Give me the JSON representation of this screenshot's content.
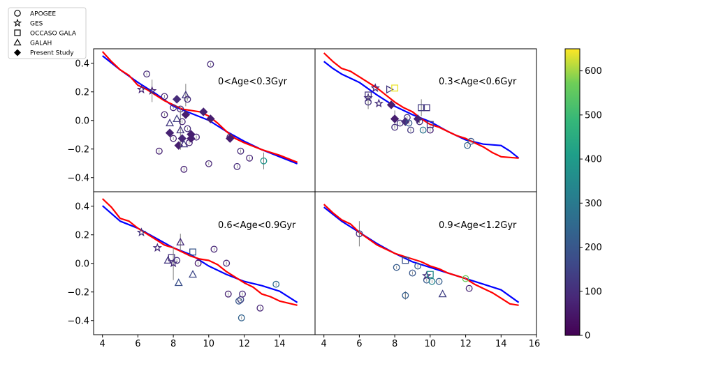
{
  "legend": {
    "entries": [
      {
        "label": "APOGEE",
        "marker": "circle"
      },
      {
        "label": "GES",
        "marker": "star"
      },
      {
        "label": "OCCASO GALA",
        "marker": "square"
      },
      {
        "label": "GALAH",
        "marker": "triangle"
      },
      {
        "label": "Present Study",
        "marker": "diamond"
      }
    ]
  },
  "colorbar": {
    "range": [
      0,
      650
    ],
    "ticks": [
      0,
      100,
      200,
      300,
      400,
      500,
      600
    ]
  },
  "chart_data": {
    "type": "scatter",
    "x_range": [
      3.5,
      16
    ],
    "y_range": [
      -0.52,
      0.5
    ],
    "x_ticks": [
      "4",
      "6",
      "8",
      "10",
      "12",
      "14"
    ],
    "x_ticks_right": [
      "4",
      "6",
      "8",
      "10",
      "12",
      "14",
      "16"
    ],
    "y_ticks": [
      "0.4",
      "0.2",
      "0.0",
      "−0.2",
      "−0.4"
    ],
    "y_tick_values": [
      0.4,
      0.2,
      0.0,
      -0.2,
      -0.4
    ],
    "panels": [
      {
        "title": "0<Age<0.3Gyr",
        "blue_line": {
          "x": [
            4,
            5,
            6,
            7,
            8,
            9,
            10,
            11,
            12,
            13,
            14,
            15
          ],
          "y": [
            0.45,
            0.35,
            0.26,
            0.18,
            0.09,
            0.04,
            -0.01,
            -0.09,
            -0.16,
            -0.22,
            -0.27,
            -0.32
          ]
        },
        "red_line": {
          "x": [
            4,
            4.5,
            5,
            5.5,
            6,
            6.5,
            7,
            7.5,
            8,
            8.5,
            9,
            9.5,
            10,
            10.5,
            11,
            11.5,
            12,
            13,
            14,
            15
          ],
          "y": [
            0.48,
            0.41,
            0.35,
            0.31,
            0.24,
            0.21,
            0.17,
            0.13,
            0.1,
            0.07,
            0.06,
            0.05,
            0.02,
            -0.03,
            -0.09,
            -0.14,
            -0.17,
            -0.22,
            -0.26,
            -0.31
          ]
        },
        "points": [
          {
            "x": 6.2,
            "y": 0.21,
            "m": "star",
            "c": 80
          },
          {
            "x": 6.5,
            "y": 0.32,
            "m": "circle",
            "c": 90
          },
          {
            "x": 6.8,
            "y": 0.2,
            "m": "star",
            "c": 70,
            "err": 0.08
          },
          {
            "x": 7.2,
            "y": -0.23,
            "m": "circle",
            "c": 70
          },
          {
            "x": 7.5,
            "y": 0.16,
            "m": "circle",
            "c": 80
          },
          {
            "x": 7.5,
            "y": 0.03,
            "m": "circle",
            "c": 80
          },
          {
            "x": 7.8,
            "y": -0.03,
            "m": "triangle",
            "c": 120
          },
          {
            "x": 7.8,
            "y": -0.1,
            "m": "diamond",
            "c": 70
          },
          {
            "x": 8.0,
            "y": 0.08,
            "m": "circle",
            "c": 90
          },
          {
            "x": 8.0,
            "y": -0.14,
            "m": "circle",
            "c": 70
          },
          {
            "x": 8.2,
            "y": 0.14,
            "m": "diamond",
            "c": 90
          },
          {
            "x": 8.2,
            "y": 0.0,
            "m": "triangle",
            "c": 140
          },
          {
            "x": 8.3,
            "y": -0.19,
            "m": "diamond",
            "c": 60
          },
          {
            "x": 8.4,
            "y": 0.07,
            "m": "circle",
            "c": 90
          },
          {
            "x": 8.4,
            "y": -0.08,
            "m": "triangle",
            "c": 110,
            "err": 0.14
          },
          {
            "x": 8.5,
            "y": -0.02,
            "m": "circle",
            "c": 80
          },
          {
            "x": 8.5,
            "y": -0.14,
            "m": "diamond",
            "c": 80
          },
          {
            "x": 8.6,
            "y": -0.36,
            "m": "circle",
            "c": 70
          },
          {
            "x": 8.6,
            "y": -0.18,
            "m": "triangle",
            "c": 120
          },
          {
            "x": 8.7,
            "y": 0.17,
            "m": "triangle",
            "c": 120,
            "err": 0.08
          },
          {
            "x": 8.7,
            "y": 0.03,
            "m": "diamond",
            "c": 60
          },
          {
            "x": 8.8,
            "y": 0.14,
            "m": "circle",
            "c": 90
          },
          {
            "x": 8.8,
            "y": -0.07,
            "m": "circle",
            "c": 90
          },
          {
            "x": 8.9,
            "y": -0.17,
            "m": "circle",
            "c": 80
          },
          {
            "x": 9.0,
            "y": -0.11,
            "m": "diamond",
            "c": 60
          },
          {
            "x": 9.0,
            "y": -0.14,
            "m": "diamond",
            "c": 60
          },
          {
            "x": 9.3,
            "y": -0.13,
            "m": "circle",
            "c": 80
          },
          {
            "x": 9.7,
            "y": 0.05,
            "m": "diamond",
            "c": 70
          },
          {
            "x": 10.0,
            "y": -0.32,
            "m": "circle",
            "c": 80
          },
          {
            "x": 10.1,
            "y": 0.39,
            "m": "circle",
            "c": 90
          },
          {
            "x": 10.1,
            "y": 0.0,
            "m": "diamond",
            "c": 60
          },
          {
            "x": 11.2,
            "y": -0.13,
            "m": "circle",
            "c": 70
          },
          {
            "x": 11.2,
            "y": -0.14,
            "m": "diamond",
            "c": 60
          },
          {
            "x": 11.6,
            "y": -0.34,
            "m": "circle",
            "c": 90
          },
          {
            "x": 11.8,
            "y": -0.23,
            "m": "circle",
            "c": 90
          },
          {
            "x": 12.3,
            "y": -0.28,
            "m": "circle",
            "c": 80
          },
          {
            "x": 13.1,
            "y": -0.3,
            "m": "circle",
            "c": 380,
            "err": 0.06
          }
        ]
      },
      {
        "title": "0.3<Age<0.6Gyr",
        "blue_line": {
          "x": [
            4,
            4.5,
            5,
            6,
            7,
            8,
            9,
            10,
            11,
            12,
            13,
            14,
            14.5,
            15
          ],
          "y": [
            0.41,
            0.36,
            0.32,
            0.26,
            0.17,
            0.09,
            0.03,
            -0.02,
            -0.09,
            -0.15,
            -0.18,
            -0.19,
            -0.23,
            -0.28
          ]
        },
        "red_line": {
          "x": [
            4,
            4.5,
            5,
            5.5,
            6,
            7,
            7.5,
            8,
            8.5,
            9,
            9.5,
            10,
            10.5,
            11,
            11.5,
            12,
            12.5,
            13,
            13.5,
            14,
            15
          ],
          "y": [
            0.47,
            0.41,
            0.36,
            0.34,
            0.3,
            0.22,
            0.17,
            0.12,
            0.08,
            0.05,
            0.0,
            -0.04,
            -0.06,
            -0.09,
            -0.12,
            -0.14,
            -0.17,
            -0.2,
            -0.24,
            -0.27,
            -0.28
          ]
        },
        "points": [
          {
            "x": 6.5,
            "y": 0.17,
            "m": "square",
            "c": 110
          },
          {
            "x": 6.5,
            "y": 0.15,
            "m": "star",
            "c": 100
          },
          {
            "x": 6.5,
            "y": 0.12,
            "m": "circle",
            "c": 110,
            "err": 0.05
          },
          {
            "x": 6.9,
            "y": 0.22,
            "m": "star",
            "c": 80
          },
          {
            "x": 7.1,
            "y": 0.11,
            "m": "star",
            "c": 100
          },
          {
            "x": 7.7,
            "y": 0.21,
            "m": "triangleRight",
            "c": 120
          },
          {
            "x": 7.8,
            "y": 0.1,
            "m": "diamond",
            "c": 60
          },
          {
            "x": 8.0,
            "y": 0.22,
            "m": "square",
            "c": 640
          },
          {
            "x": 8.0,
            "y": 0.0,
            "m": "diamond",
            "c": 60,
            "err": 0.06
          },
          {
            "x": 8.0,
            "y": -0.06,
            "m": "circle",
            "c": 100
          },
          {
            "x": 8.3,
            "y": -0.03,
            "m": "circle",
            "c": 110
          },
          {
            "x": 8.6,
            "y": -0.02,
            "m": "diamond",
            "c": 90
          },
          {
            "x": 8.7,
            "y": 0.01,
            "m": "circle",
            "c": 110
          },
          {
            "x": 8.8,
            "y": -0.03,
            "m": "circle",
            "c": 200
          },
          {
            "x": 8.9,
            "y": -0.08,
            "m": "circle",
            "c": 120
          },
          {
            "x": 9.3,
            "y": 0.0,
            "m": "diamond",
            "c": 70
          },
          {
            "x": 9.4,
            "y": -0.02,
            "m": "circle",
            "c": 100
          },
          {
            "x": 9.5,
            "y": 0.08,
            "m": "square",
            "c": 130,
            "err": 0.06
          },
          {
            "x": 9.6,
            "y": -0.08,
            "m": "circle",
            "c": 280
          },
          {
            "x": 9.8,
            "y": 0.08,
            "m": "square",
            "c": 110
          },
          {
            "x": 10.0,
            "y": -0.08,
            "m": "circle",
            "c": 70
          },
          {
            "x": 10.0,
            "y": -0.04,
            "m": "square",
            "c": 120
          },
          {
            "x": 12.1,
            "y": -0.19,
            "m": "circle",
            "c": 230
          },
          {
            "x": 12.3,
            "y": -0.16,
            "m": "circle",
            "c": 200
          }
        ]
      },
      {
        "title": "0.6<Age<0.9Gyr",
        "blue_line": {
          "x": [
            4,
            5,
            6,
            7,
            8,
            9,
            10,
            11,
            12,
            13,
            14,
            15
          ],
          "y": [
            0.4,
            0.29,
            0.24,
            0.17,
            0.1,
            0.05,
            -0.03,
            -0.09,
            -0.14,
            -0.17,
            -0.21,
            -0.29
          ]
        },
        "red_line": {
          "x": [
            4,
            4.5,
            5,
            5.5,
            6,
            6.5,
            7,
            7.5,
            8,
            8.5,
            9,
            9.5,
            10,
            10.5,
            11,
            11.5,
            12,
            12.5,
            13,
            13.5,
            14,
            15
          ],
          "y": [
            0.45,
            0.39,
            0.31,
            0.29,
            0.24,
            0.2,
            0.16,
            0.12,
            0.1,
            0.07,
            0.04,
            0.02,
            0.01,
            -0.02,
            -0.07,
            -0.11,
            -0.15,
            -0.18,
            -0.23,
            -0.25,
            -0.28,
            -0.31
          ]
        },
        "points": [
          {
            "x": 6.2,
            "y": 0.21,
            "m": "star",
            "c": 110
          },
          {
            "x": 7.1,
            "y": 0.1,
            "m": "star",
            "c": 90
          },
          {
            "x": 7.7,
            "y": 0.01,
            "m": "triangle",
            "c": 120
          },
          {
            "x": 7.9,
            "y": 0.03,
            "m": "square",
            "c": 100
          },
          {
            "x": 8.0,
            "y": -0.01,
            "m": "star",
            "c": 90,
            "err": 0.12
          },
          {
            "x": 8.2,
            "y": 0.01,
            "m": "circle",
            "c": 100
          },
          {
            "x": 8.3,
            "y": -0.15,
            "m": "triangle",
            "c": 180
          },
          {
            "x": 8.4,
            "y": 0.14,
            "m": "triangle",
            "c": 90,
            "err": 0.06
          },
          {
            "x": 9.1,
            "y": 0.07,
            "m": "square",
            "c": 200
          },
          {
            "x": 9.1,
            "y": -0.09,
            "m": "triangle",
            "c": 160
          },
          {
            "x": 9.4,
            "y": -0.01,
            "m": "circle",
            "c": 50
          },
          {
            "x": 10.3,
            "y": 0.09,
            "m": "circle",
            "c": 80
          },
          {
            "x": 11.0,
            "y": -0.01,
            "m": "circle",
            "c": 80
          },
          {
            "x": 11.1,
            "y": -0.23,
            "m": "circle",
            "c": 70
          },
          {
            "x": 11.7,
            "y": -0.28,
            "m": "circle",
            "c": 200
          },
          {
            "x": 11.8,
            "y": -0.27,
            "m": "circle",
            "c": 150
          },
          {
            "x": 11.9,
            "y": -0.23,
            "m": "circle",
            "c": 90
          },
          {
            "x": 11.85,
            "y": -0.4,
            "m": "circle",
            "c": 230
          },
          {
            "x": 12.9,
            "y": -0.33,
            "m": "circle",
            "c": 80
          },
          {
            "x": 13.8,
            "y": -0.16,
            "m": "circle",
            "c": 250
          }
        ]
      },
      {
        "title": "0.9<Age<1.2Gyr",
        "blue_line": {
          "x": [
            4,
            5,
            6,
            7,
            8,
            9,
            10,
            11,
            12,
            13,
            14,
            15
          ],
          "y": [
            0.39,
            0.29,
            0.21,
            0.13,
            0.06,
            0.0,
            -0.04,
            -0.08,
            -0.12,
            -0.16,
            -0.2,
            -0.29
          ]
        },
        "red_line": {
          "x": [
            4,
            4.5,
            5,
            5.5,
            6,
            7,
            8,
            8.5,
            9,
            9.5,
            10,
            10.5,
            11,
            11.5,
            12,
            12.5,
            13,
            13.5,
            14,
            14.5,
            15
          ],
          "y": [
            0.41,
            0.35,
            0.3,
            0.27,
            0.21,
            0.12,
            0.06,
            0.04,
            0.02,
            0.0,
            -0.03,
            -0.05,
            -0.08,
            -0.1,
            -0.12,
            -0.16,
            -0.19,
            -0.22,
            -0.26,
            -0.3,
            -0.31
          ]
        },
        "points": [
          {
            "x": 6.0,
            "y": 0.2,
            "m": "circle",
            "c": 100,
            "err": 0.09
          },
          {
            "x": 8.1,
            "y": -0.04,
            "m": "circle",
            "c": 210
          },
          {
            "x": 8.6,
            "y": 0.01,
            "m": "square",
            "c": 180
          },
          {
            "x": 8.6,
            "y": -0.24,
            "m": "circle",
            "c": 220,
            "err": 0.03
          },
          {
            "x": 9.0,
            "y": -0.08,
            "m": "circle",
            "c": 200
          },
          {
            "x": 9.3,
            "y": -0.03,
            "m": "circle",
            "c": 220
          },
          {
            "x": 9.8,
            "y": -0.13,
            "m": "circle",
            "c": 210
          },
          {
            "x": 9.8,
            "y": -0.1,
            "m": "star",
            "c": 100
          },
          {
            "x": 10.0,
            "y": -0.09,
            "m": "square",
            "c": 350
          },
          {
            "x": 10.1,
            "y": -0.14,
            "m": "circle",
            "c": 330
          },
          {
            "x": 10.5,
            "y": -0.14,
            "m": "circle",
            "c": 220
          },
          {
            "x": 10.7,
            "y": -0.23,
            "m": "triangle",
            "c": 140
          },
          {
            "x": 12.0,
            "y": -0.12,
            "m": "circle",
            "c": 560
          },
          {
            "x": 12.2,
            "y": -0.19,
            "m": "circle",
            "c": 80
          }
        ]
      }
    ]
  }
}
